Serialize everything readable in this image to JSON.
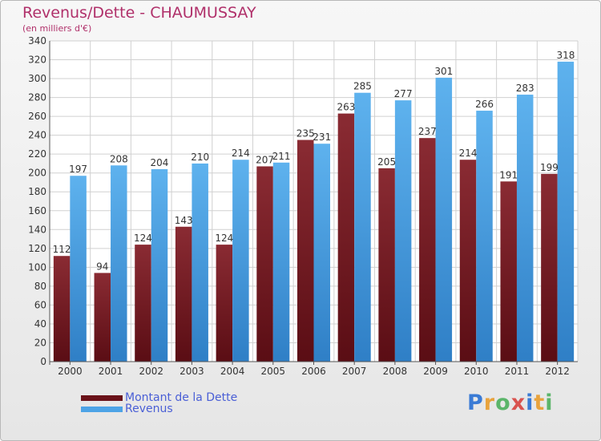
{
  "header": {
    "title": "Revenus/Dette - CHAUMUSSAY",
    "subtitle": "(en milliers d'€)"
  },
  "legend": {
    "debt_label": "Montant de la Dette",
    "revenue_label": "Revenus"
  },
  "logo": {
    "text": "Proxiti",
    "letters": [
      "P",
      "r",
      "o",
      "x",
      "i",
      "t",
      "i"
    ],
    "colors": [
      "#3a7bd5",
      "#e8a33d",
      "#5bb56a",
      "#d9534f",
      "#3a7bd5",
      "#e8a33d",
      "#5bb56a"
    ]
  },
  "colors": {
    "debt": "#7a1f28",
    "revenue": "#4da3e6",
    "title": "#b0306a"
  },
  "chart_data": {
    "type": "bar",
    "categories": [
      "2000",
      "2001",
      "2002",
      "2003",
      "2004",
      "2005",
      "2006",
      "2007",
      "2008",
      "2009",
      "2010",
      "2011",
      "2012"
    ],
    "series": [
      {
        "name": "Montant de la Dette",
        "values": [
          112,
          94,
          124,
          143,
          124,
          207,
          235,
          263,
          205,
          237,
          214,
          191,
          199
        ]
      },
      {
        "name": "Revenus",
        "values": [
          197,
          208,
          204,
          210,
          214,
          211,
          231,
          285,
          277,
          301,
          266,
          283,
          318
        ]
      }
    ],
    "title": "Revenus/Dette - CHAUMUSSAY",
    "ylabel": "(en milliers d'€)",
    "ylim": [
      0,
      340
    ],
    "yticks": [
      0,
      20,
      40,
      60,
      80,
      100,
      120,
      140,
      160,
      180,
      200,
      220,
      240,
      260,
      280,
      300,
      320,
      340
    ],
    "grid": true,
    "legend_position": "bottom-left"
  }
}
